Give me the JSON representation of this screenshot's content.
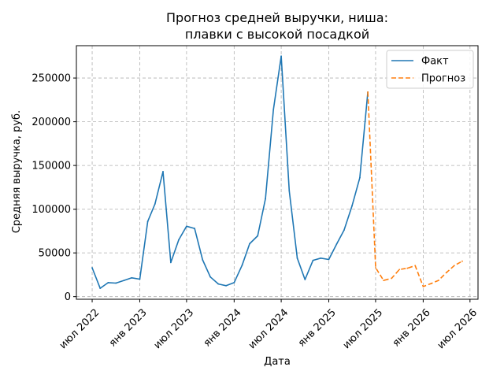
{
  "chart_data": {
    "type": "line",
    "title": [
      "Прогноз средней выручки, ниша:",
      "плавки с высокой посадкой"
    ],
    "xlabel": "Дата",
    "ylabel": "Средняя выручка, руб.",
    "x_ticks": [
      {
        "label": "июл 2022",
        "date": "2022-07-01"
      },
      {
        "label": "янв 2023",
        "date": "2023-01-01"
      },
      {
        "label": "июл 2023",
        "date": "2023-07-01"
      },
      {
        "label": "янв 2024",
        "date": "2024-01-01"
      },
      {
        "label": "июл 2024",
        "date": "2024-07-01"
      },
      {
        "label": "янв 2025",
        "date": "2025-01-01"
      },
      {
        "label": "июл 2025",
        "date": "2025-07-01"
      },
      {
        "label": "янв 2026",
        "date": "2026-01-01"
      },
      {
        "label": "июл 2026",
        "date": "2026-07-01"
      }
    ],
    "xlim": [
      "2022-05-01",
      "2026-08-01"
    ],
    "y_ticks": [
      0,
      50000,
      100000,
      150000,
      200000,
      250000
    ],
    "ylim": [
      -3000,
      287000
    ],
    "grid": true,
    "legend_position": "top-right",
    "series": [
      {
        "name": "Факт",
        "color": "#1f77b4",
        "style": "solid",
        "points": [
          [
            "2022-07-01",
            33000
          ],
          [
            "2022-08-01",
            9500
          ],
          [
            "2022-09-01",
            16000
          ],
          [
            "2022-10-01",
            15500
          ],
          [
            "2022-11-01",
            18500
          ],
          [
            "2022-12-01",
            21500
          ],
          [
            "2023-01-01",
            20000
          ],
          [
            "2023-02-01",
            86000
          ],
          [
            "2023-03-01",
            106000
          ],
          [
            "2023-04-01",
            143000
          ],
          [
            "2023-05-01",
            39000
          ],
          [
            "2023-06-01",
            65000
          ],
          [
            "2023-07-01",
            80500
          ],
          [
            "2023-08-01",
            78000
          ],
          [
            "2023-09-01",
            42000
          ],
          [
            "2023-10-01",
            22500
          ],
          [
            "2023-11-01",
            14500
          ],
          [
            "2023-12-01",
            12500
          ],
          [
            "2024-01-01",
            16000
          ],
          [
            "2024-02-01",
            36000
          ],
          [
            "2024-03-01",
            60500
          ],
          [
            "2024-04-01",
            69500
          ],
          [
            "2024-05-01",
            112000
          ],
          [
            "2024-06-01",
            214000
          ],
          [
            "2024-07-01",
            275000
          ],
          [
            "2024-08-01",
            121000
          ],
          [
            "2024-09-01",
            44000
          ],
          [
            "2024-10-01",
            19500
          ],
          [
            "2024-11-01",
            41500
          ],
          [
            "2024-12-01",
            44000
          ],
          [
            "2025-01-01",
            42500
          ],
          [
            "2025-02-01",
            60500
          ],
          [
            "2025-03-01",
            76000
          ],
          [
            "2025-04-01",
            104000
          ],
          [
            "2025-05-01",
            136000
          ],
          [
            "2025-06-01",
            234000
          ]
        ]
      },
      {
        "name": "Прогноз",
        "color": "#ff7f0e",
        "style": "dashed",
        "points": [
          [
            "2025-06-01",
            234000
          ],
          [
            "2025-07-01",
            33000
          ],
          [
            "2025-08-01",
            18500
          ],
          [
            "2025-09-01",
            21000
          ],
          [
            "2025-10-01",
            31000
          ],
          [
            "2025-11-01",
            32500
          ],
          [
            "2025-12-01",
            35500
          ],
          [
            "2026-01-01",
            11500
          ],
          [
            "2026-02-01",
            15000
          ],
          [
            "2026-03-01",
            18500
          ],
          [
            "2026-04-01",
            27500
          ],
          [
            "2026-05-01",
            35500
          ],
          [
            "2026-06-01",
            40500
          ]
        ]
      }
    ]
  }
}
